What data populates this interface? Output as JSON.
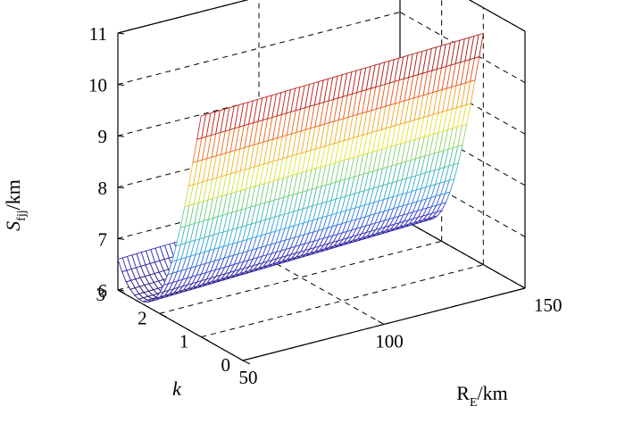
{
  "chart_data": {
    "type": "surface",
    "title": "",
    "zlabel": {
      "main": "S",
      "sub": "fjj",
      "unit": "/km"
    },
    "ylabel": "k",
    "xlabel": {
      "main": "R",
      "sub": "E",
      "unit": "/km"
    },
    "x_range": [
      50,
      150
    ],
    "y_range": [
      0,
      3
    ],
    "z_range": [
      6,
      11
    ],
    "x_ticks": [
      "50",
      "100",
      "150"
    ],
    "y_ticks": [
      "0",
      "1",
      "2",
      "3"
    ],
    "z_ticks": [
      "6",
      "7",
      "8",
      "9",
      "10",
      "11"
    ],
    "grid": true,
    "colormap": "jet-like (blue low → red high)",
    "surface": {
      "k_values": [
        1.0,
        1.1,
        1.2,
        1.3,
        1.4,
        1.5,
        1.6,
        1.7,
        1.8,
        1.9,
        2.0,
        2.1,
        2.2,
        2.3,
        2.4,
        2.5,
        2.6,
        2.7,
        2.8,
        2.9,
        3.0
      ],
      "z_at_RE_50": [
        10.3,
        9.8,
        9.3,
        8.8,
        8.35,
        7.9,
        7.5,
        7.15,
        6.85,
        6.6,
        6.4,
        6.25,
        6.15,
        6.08,
        6.05,
        6.05,
        6.08,
        6.15,
        6.25,
        6.4,
        6.6
      ],
      "z_at_RE_150": [
        10.5,
        10.0,
        9.5,
        9.0,
        8.55,
        8.1,
        7.7,
        7.35,
        7.05,
        6.8,
        6.6,
        6.45,
        6.35,
        6.28,
        6.25,
        6.25,
        6.28,
        6.35,
        6.45,
        6.6,
        6.8
      ]
    }
  },
  "colors": {
    "background": "#ffffff",
    "axis": "#000000",
    "grid": "#000000"
  }
}
